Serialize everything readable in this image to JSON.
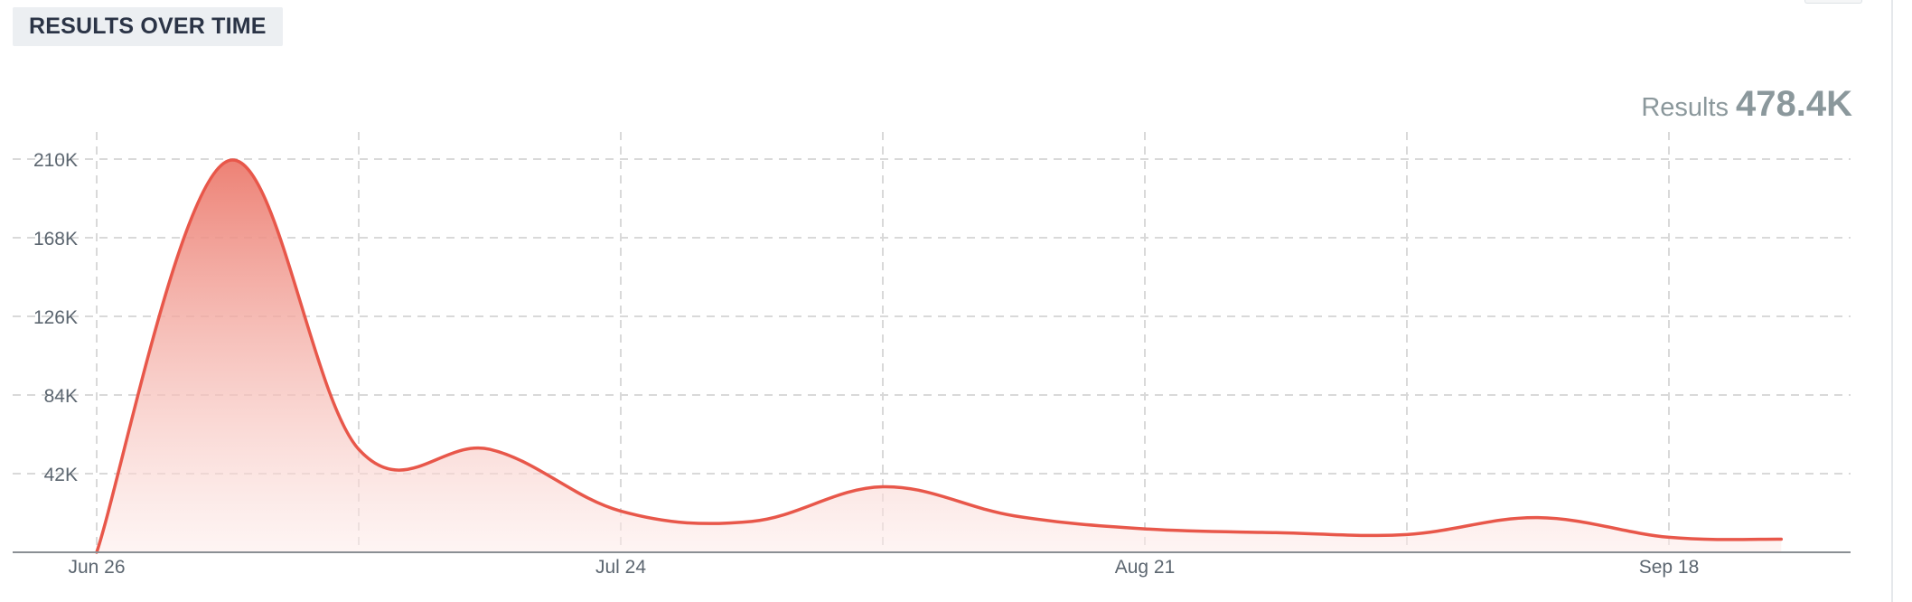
{
  "header": {
    "title": "RESULTS OVER TIME"
  },
  "summary": {
    "label": "Results",
    "value": "478.4K"
  },
  "colors": {
    "line": "#e8574a",
    "fill_top": "#ec7b6e",
    "grid": "#d9d9d9",
    "axis": "#8a8f94"
  },
  "chart_data": {
    "type": "area",
    "title": "RESULTS OVER TIME",
    "xlabel": "",
    "ylabel": "",
    "grid": true,
    "legend": "none",
    "ylim": [
      0,
      210000
    ],
    "xlim": [
      0,
      94
    ],
    "y_ticks": [
      {
        "value": 210000,
        "label": "210K"
      },
      {
        "value": 168000,
        "label": "168K"
      },
      {
        "value": 126000,
        "label": "126K"
      },
      {
        "value": 84000,
        "label": "84K"
      },
      {
        "value": 42000,
        "label": "42K"
      }
    ],
    "x_ticks": [
      {
        "day": 0,
        "label": "Jun 26"
      },
      {
        "day": 28,
        "label": "Jul 24"
      },
      {
        "day": 56,
        "label": "Aug 21"
      },
      {
        "day": 84,
        "label": "Sep 18"
      }
    ],
    "x_gridlines_days": [
      0,
      14,
      28,
      42,
      56,
      70,
      84
    ],
    "series": [
      {
        "name": "Results",
        "points": [
          {
            "day": 0,
            "value": 0
          },
          {
            "day": 7,
            "value": 209000
          },
          {
            "day": 14,
            "value": 55000
          },
          {
            "day": 21,
            "value": 55000
          },
          {
            "day": 28,
            "value": 22000
          },
          {
            "day": 35,
            "value": 16500
          },
          {
            "day": 42,
            "value": 35000
          },
          {
            "day": 49,
            "value": 19500
          },
          {
            "day": 56,
            "value": 12500
          },
          {
            "day": 63,
            "value": 10500
          },
          {
            "day": 70,
            "value": 9500
          },
          {
            "day": 77,
            "value": 18500
          },
          {
            "day": 84,
            "value": 8000
          },
          {
            "day": 90,
            "value": 7000
          }
        ]
      }
    ]
  }
}
